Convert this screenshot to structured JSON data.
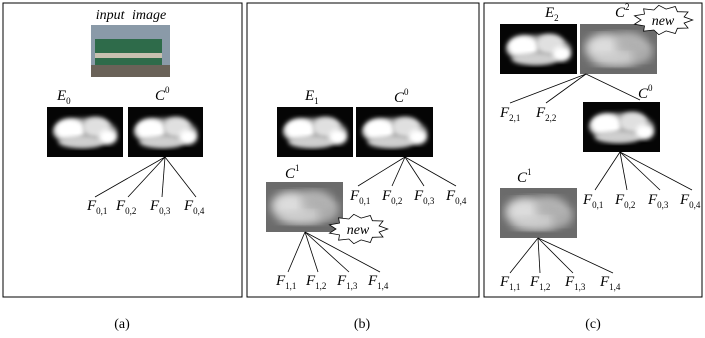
{
  "panels": [
    {
      "caption": "(a)",
      "input_label": "input image",
      "labels": [
        {
          "base": "E",
          "sub": "0"
        },
        {
          "base": "C",
          "sup": "0"
        },
        {
          "base": "F",
          "sub": "0,1"
        },
        {
          "base": "F",
          "sub": "0,2"
        },
        {
          "base": "F",
          "sub": "0,3"
        },
        {
          "base": "F",
          "sub": "0,4"
        }
      ]
    },
    {
      "caption": "(b)",
      "new_label": "new",
      "labels": [
        {
          "base": "E",
          "sub": "1"
        },
        {
          "base": "C",
          "sup": "0"
        },
        {
          "base": "C",
          "sup": "1"
        },
        {
          "base": "F",
          "sub": "0,1"
        },
        {
          "base": "F",
          "sub": "0,2"
        },
        {
          "base": "F",
          "sub": "0,3"
        },
        {
          "base": "F",
          "sub": "0,4"
        },
        {
          "base": "F",
          "sub": "1,1"
        },
        {
          "base": "F",
          "sub": "1,2"
        },
        {
          "base": "F",
          "sub": "1,3"
        },
        {
          "base": "F",
          "sub": "1,4"
        }
      ]
    },
    {
      "caption": "(c)",
      "new_label": "new",
      "labels": [
        {
          "base": "E",
          "sub": "2"
        },
        {
          "base": "C",
          "sup": "2"
        },
        {
          "base": "C",
          "sup": "0"
        },
        {
          "base": "C",
          "sup": "1"
        },
        {
          "base": "F",
          "sub": "2,1"
        },
        {
          "base": "F",
          "sub": "2,2"
        },
        {
          "base": "F",
          "sub": "0,1"
        },
        {
          "base": "F",
          "sub": "0,2"
        },
        {
          "base": "F",
          "sub": "0,3"
        },
        {
          "base": "F",
          "sub": "0,4"
        },
        {
          "base": "F",
          "sub": "1,1"
        },
        {
          "base": "F",
          "sub": "1,2"
        },
        {
          "base": "F",
          "sub": "1,3"
        },
        {
          "base": "F",
          "sub": "1,4"
        }
      ]
    }
  ]
}
